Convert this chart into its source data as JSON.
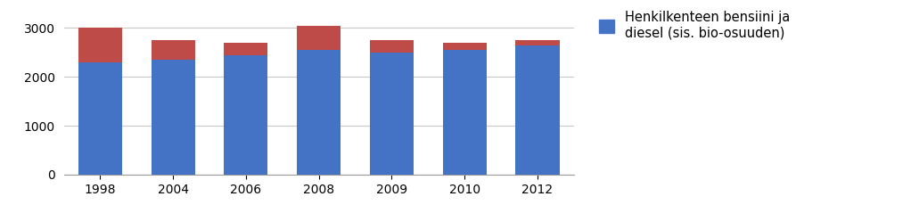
{
  "years": [
    "1998",
    "2004",
    "2006",
    "2008",
    "2009",
    "2010",
    "2012"
  ],
  "blue_values": [
    2300,
    2350,
    2450,
    2550,
    2500,
    2550,
    2650
  ],
  "red_values": [
    700,
    400,
    250,
    500,
    250,
    150,
    100
  ],
  "blue_color": "#4472C4",
  "red_color": "#BE4B48",
  "legend_label": "Henkilkenteen bensiini ja\ndiesel (sis. bio-osuuden)",
  "yticks": [
    0,
    1000,
    2000,
    3000
  ],
  "ylim": [
    0,
    3400
  ],
  "background_color": "#ffffff",
  "grid_color": "#c8c8c8",
  "bar_width": 0.6
}
